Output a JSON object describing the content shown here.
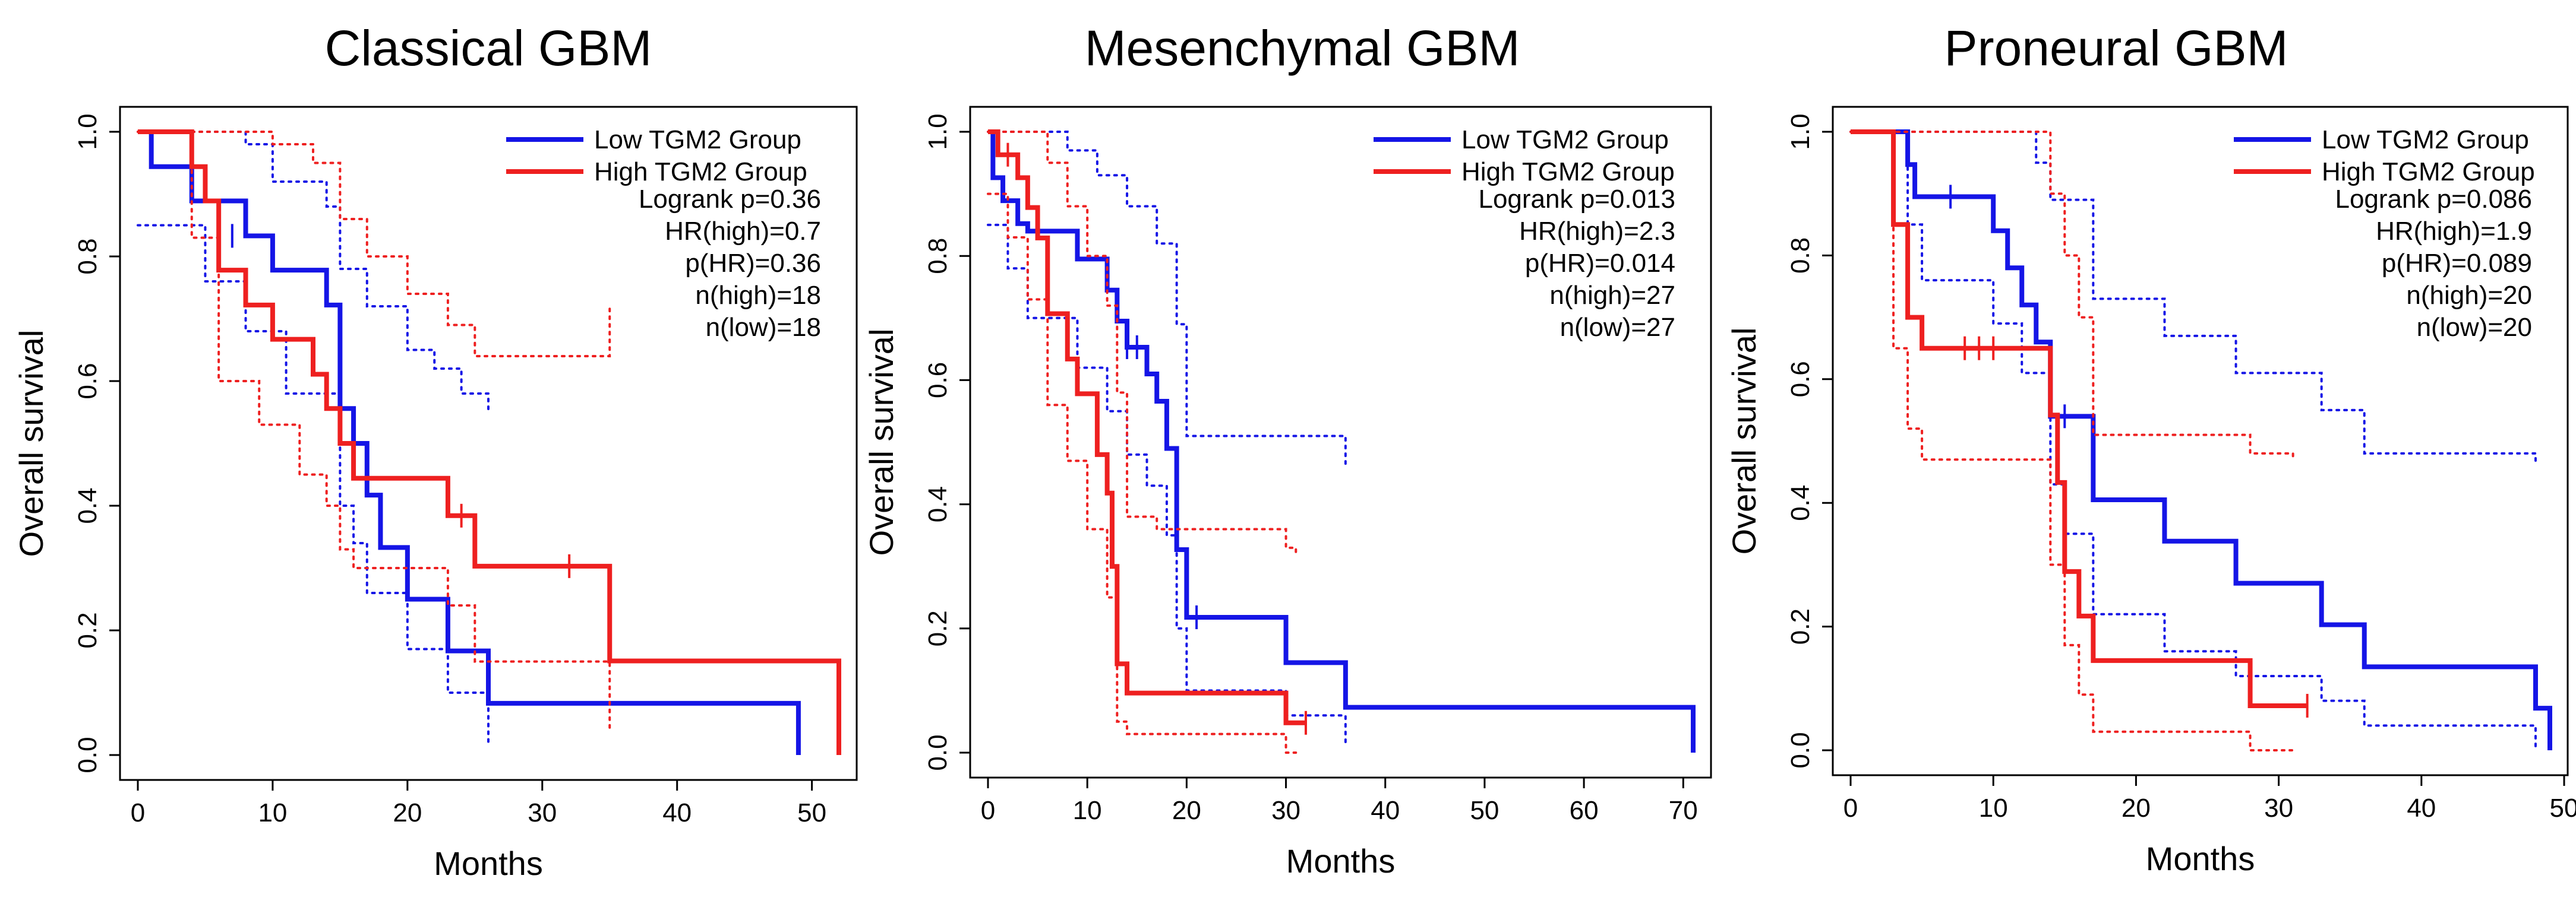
{
  "colors": {
    "low": "#1515e6",
    "high": "#ee2020",
    "axis": "#000000"
  },
  "chart_data": [
    {
      "type": "line",
      "title": "Classical GBM",
      "xlabel": "Months",
      "ylabel": "Overall survival",
      "xlim": [
        0,
        52
      ],
      "ylim": [
        0,
        1
      ],
      "xticks": [
        0,
        10,
        20,
        30,
        40,
        50
      ],
      "yticks": [
        0.0,
        0.2,
        0.4,
        0.6,
        0.8,
        1.0
      ],
      "xtick_labels": [
        "0",
        "10",
        "20",
        "30",
        "40",
        "50"
      ],
      "ytick_labels": [
        "0.0",
        "0.2",
        "0.4",
        "0.6",
        "0.8",
        "1.0"
      ],
      "legend": {
        "position": "top-right",
        "entries": [
          "Low TGM2 Group",
          "High TGM2 Group"
        ]
      },
      "stats": [
        "Logrank p=0.36",
        "HR(high)=0.7",
        "p(HR)=0.36",
        "n(high)=18",
        "n(low)=18"
      ],
      "series": [
        {
          "name": "Low TGM2 Group",
          "color": "#1515e6",
          "steps": [
            [
              1,
              0.944
            ],
            [
              4,
              0.889
            ],
            [
              8,
              0.833
            ],
            [
              10,
              0.778
            ],
            [
              14,
              0.722
            ],
            [
              15,
              0.556
            ],
            [
              16,
              0.5
            ],
            [
              17,
              0.417
            ],
            [
              18,
              0.333
            ],
            [
              20,
              0.25
            ],
            [
              23,
              0.167
            ],
            [
              26,
              0.083
            ],
            [
              49,
              0.0
            ]
          ],
          "censors": [
            [
              7,
              0.833
            ]
          ],
          "ci_upper": [
            [
              0,
              1.0
            ],
            [
              5,
              1.0
            ],
            [
              8,
              0.98
            ],
            [
              10,
              0.92
            ],
            [
              14,
              0.88
            ],
            [
              15,
              0.78
            ],
            [
              17,
              0.72
            ],
            [
              20,
              0.65
            ],
            [
              22,
              0.62
            ],
            [
              24,
              0.58
            ],
            [
              26,
              0.55
            ]
          ],
          "ci_lower": [
            [
              0,
              0.85
            ],
            [
              2,
              0.85
            ],
            [
              5,
              0.76
            ],
            [
              8,
              0.68
            ],
            [
              11,
              0.58
            ],
            [
              15,
              0.4
            ],
            [
              16,
              0.34
            ],
            [
              17,
              0.26
            ],
            [
              20,
              0.17
            ],
            [
              23,
              0.1
            ],
            [
              26,
              0.02
            ]
          ]
        },
        {
          "name": "High TGM2 Group",
          "color": "#ee2020",
          "steps": [
            [
              4,
              0.944
            ],
            [
              5,
              0.889
            ],
            [
              6,
              0.778
            ],
            [
              8,
              0.722
            ],
            [
              10,
              0.667
            ],
            [
              13,
              0.611
            ],
            [
              14,
              0.556
            ],
            [
              15,
              0.5
            ],
            [
              16,
              0.444
            ],
            [
              23,
              0.384
            ],
            [
              25,
              0.303
            ],
            [
              35,
              0.151
            ],
            [
              52,
              0.0
            ]
          ],
          "censors": [
            [
              24,
              0.384
            ],
            [
              32,
              0.303
            ]
          ],
          "ci_upper": [
            [
              0,
              1.0
            ],
            [
              7,
              1.0
            ],
            [
              10,
              0.98
            ],
            [
              13,
              0.95
            ],
            [
              15,
              0.86
            ],
            [
              17,
              0.8
            ],
            [
              20,
              0.74
            ],
            [
              23,
              0.69
            ],
            [
              25,
              0.64
            ],
            [
              35,
              0.72
            ]
          ],
          "ci_lower": [
            [
              0,
              1.0
            ],
            [
              4,
              0.83
            ],
            [
              6,
              0.6
            ],
            [
              9,
              0.53
            ],
            [
              12,
              0.45
            ],
            [
              14,
              0.4
            ],
            [
              15,
              0.33
            ],
            [
              16,
              0.3
            ],
            [
              23,
              0.24
            ],
            [
              25,
              0.15
            ],
            [
              35,
              0.04
            ]
          ]
        }
      ]
    },
    {
      "type": "line",
      "title": "Mesenchymal GBM",
      "xlabel": "Months",
      "ylabel": "Overall survival",
      "xlim": [
        0,
        71
      ],
      "ylim": [
        0,
        1
      ],
      "xticks": [
        0,
        10,
        20,
        30,
        40,
        50,
        60,
        70
      ],
      "yticks": [
        0.0,
        0.2,
        0.4,
        0.6,
        0.8,
        1.0
      ],
      "xtick_labels": [
        "0",
        "10",
        "20",
        "30",
        "40",
        "50",
        "60",
        "70"
      ],
      "ytick_labels": [
        "0.0",
        "0.2",
        "0.4",
        "0.6",
        "0.8",
        "1.0"
      ],
      "legend": {
        "position": "top-right",
        "entries": [
          "Low TGM2 Group",
          "High TGM2 Group"
        ]
      },
      "stats": [
        "Logrank p=0.013",
        "HR(high)=2.3",
        "p(HR)=0.014",
        "n(high)=27",
        "n(low)=27"
      ],
      "series": [
        {
          "name": "Low TGM2 Group",
          "color": "#1515e6",
          "steps": [
            [
              0.5,
              0.926
            ],
            [
              1.5,
              0.889
            ],
            [
              3,
              0.852
            ],
            [
              4,
              0.84
            ],
            [
              9,
              0.795
            ],
            [
              12,
              0.745
            ],
            [
              13,
              0.695
            ],
            [
              14,
              0.653
            ],
            [
              16,
              0.61
            ],
            [
              17,
              0.566
            ],
            [
              18,
              0.49
            ],
            [
              19,
              0.327
            ],
            [
              20,
              0.218
            ],
            [
              30,
              0.145
            ],
            [
              36,
              0.073
            ],
            [
              71,
              0.0
            ]
          ],
          "censors": [
            [
              14,
              0.653
            ],
            [
              15,
              0.653
            ],
            [
              21,
              0.218
            ]
          ],
          "ci_upper": [
            [
              0,
              1.0
            ],
            [
              4,
              1.0
            ],
            [
              8,
              0.97
            ],
            [
              11,
              0.93
            ],
            [
              14,
              0.88
            ],
            [
              17,
              0.82
            ],
            [
              19,
              0.69
            ],
            [
              20,
              0.51
            ],
            [
              30,
              0.51
            ],
            [
              36,
              0.46
            ]
          ],
          "ci_lower": [
            [
              0,
              0.85
            ],
            [
              2,
              0.78
            ],
            [
              4,
              0.7
            ],
            [
              9,
              0.62
            ],
            [
              12,
              0.55
            ],
            [
              14,
              0.48
            ],
            [
              16,
              0.43
            ],
            [
              18,
              0.35
            ],
            [
              19,
              0.2
            ],
            [
              20,
              0.1
            ],
            [
              30,
              0.06
            ],
            [
              36,
              0.01
            ]
          ]
        },
        {
          "name": "High TGM2 Group",
          "color": "#ee2020",
          "steps": [
            [
              1,
              0.963
            ],
            [
              3,
              0.926
            ],
            [
              4,
              0.878
            ],
            [
              5,
              0.829
            ],
            [
              6,
              0.707
            ],
            [
              8,
              0.634
            ],
            [
              9,
              0.578
            ],
            [
              11,
              0.48
            ],
            [
              12,
              0.418
            ],
            [
              12.5,
              0.3
            ],
            [
              13,
              0.143
            ],
            [
              14,
              0.096
            ],
            [
              30,
              0.048
            ],
            [
              32,
              0.048
            ]
          ],
          "censors": [
            [
              2,
              0.963
            ],
            [
              32,
              0.048
            ]
          ],
          "ci_upper": [
            [
              0,
              1.0
            ],
            [
              4,
              1.0
            ],
            [
              6,
              0.95
            ],
            [
              8,
              0.88
            ],
            [
              10,
              0.8
            ],
            [
              12,
              0.72
            ],
            [
              13,
              0.58
            ],
            [
              14,
              0.38
            ],
            [
              17,
              0.36
            ],
            [
              30,
              0.33
            ],
            [
              31,
              0.32
            ]
          ],
          "ci_lower": [
            [
              0,
              0.9
            ],
            [
              2,
              0.83
            ],
            [
              4,
              0.73
            ],
            [
              6,
              0.56
            ],
            [
              8,
              0.47
            ],
            [
              10,
              0.36
            ],
            [
              12,
              0.25
            ],
            [
              13,
              0.05
            ],
            [
              14,
              0.03
            ],
            [
              30,
              0.0
            ],
            [
              31,
              0.0
            ]
          ]
        }
      ]
    },
    {
      "type": "line",
      "title": "Proneural GBM",
      "xlabel": "Months",
      "ylabel": "Overall survival",
      "xlim": [
        0,
        49
      ],
      "ylim": [
        0,
        1
      ],
      "xticks": [
        0,
        10,
        20,
        30,
        40,
        50
      ],
      "yticks": [
        0.0,
        0.2,
        0.4,
        0.6,
        0.8,
        1.0
      ],
      "xtick_labels": [
        "0",
        "10",
        "20",
        "30",
        "40",
        "50"
      ],
      "ytick_labels": [
        "0.0",
        "0.2",
        "0.4",
        "0.6",
        "0.8",
        "1.0"
      ],
      "legend": {
        "position": "top-right",
        "entries": [
          "Low TGM2 Group",
          "High TGM2 Group"
        ]
      },
      "stats": [
        "Logrank p=0.086",
        "HR(high)=1.9",
        "p(HR)=0.089",
        "n(high)=20",
        "n(low)=20"
      ],
      "series": [
        {
          "name": "Low TGM2 Group",
          "color": "#1515e6",
          "steps": [
            [
              4,
              0.947
            ],
            [
              4.5,
              0.895
            ],
            [
              10,
              0.84
            ],
            [
              11,
              0.78
            ],
            [
              12,
              0.72
            ],
            [
              13,
              0.66
            ],
            [
              14,
              0.54
            ],
            [
              17,
              0.405
            ],
            [
              22,
              0.338
            ],
            [
              27,
              0.27
            ],
            [
              33,
              0.203
            ],
            [
              36,
              0.135
            ],
            [
              48,
              0.068
            ],
            [
              49,
              0.0
            ]
          ],
          "censors": [
            [
              7,
              0.895
            ],
            [
              15,
              0.54
            ]
          ],
          "ci_upper": [
            [
              0,
              1.0
            ],
            [
              10,
              1.0
            ],
            [
              13,
              0.95
            ],
            [
              14,
              0.89
            ],
            [
              17,
              0.73
            ],
            [
              22,
              0.67
            ],
            [
              27,
              0.61
            ],
            [
              33,
              0.55
            ],
            [
              36,
              0.48
            ],
            [
              48,
              0.46
            ]
          ],
          "ci_lower": [
            [
              0,
              1.0
            ],
            [
              4,
              0.85
            ],
            [
              5,
              0.76
            ],
            [
              10,
              0.69
            ],
            [
              12,
              0.61
            ],
            [
              14,
              0.43
            ],
            [
              15,
              0.35
            ],
            [
              17,
              0.22
            ],
            [
              22,
              0.16
            ],
            [
              27,
              0.12
            ],
            [
              33,
              0.08
            ],
            [
              36,
              0.04
            ],
            [
              48,
              0.0
            ]
          ]
        },
        {
          "name": "High TGM2 Group",
          "color": "#ee2020",
          "steps": [
            [
              3,
              0.85
            ],
            [
              4,
              0.7
            ],
            [
              5,
              0.65
            ],
            [
              14,
              0.542
            ],
            [
              14.5,
              0.433
            ],
            [
              15,
              0.289
            ],
            [
              16,
              0.217
            ],
            [
              17,
              0.145
            ],
            [
              28,
              0.072
            ],
            [
              32,
              0.072
            ]
          ],
          "censors": [
            [
              8,
              0.65
            ],
            [
              9,
              0.65
            ],
            [
              10,
              0.65
            ],
            [
              32,
              0.072
            ]
          ],
          "ci_upper": [
            [
              0,
              1.0
            ],
            [
              12,
              1.0
            ],
            [
              14,
              0.9
            ],
            [
              15,
              0.8
            ],
            [
              16,
              0.7
            ],
            [
              17,
              0.51
            ],
            [
              28,
              0.48
            ],
            [
              31,
              0.47
            ]
          ],
          "ci_lower": [
            [
              0,
              1.0
            ],
            [
              3,
              0.65
            ],
            [
              4,
              0.52
            ],
            [
              5,
              0.47
            ],
            [
              14,
              0.3
            ],
            [
              15,
              0.17
            ],
            [
              16,
              0.09
            ],
            [
              17,
              0.03
            ],
            [
              28,
              0.0
            ],
            [
              31,
              0.0
            ]
          ]
        }
      ]
    }
  ]
}
